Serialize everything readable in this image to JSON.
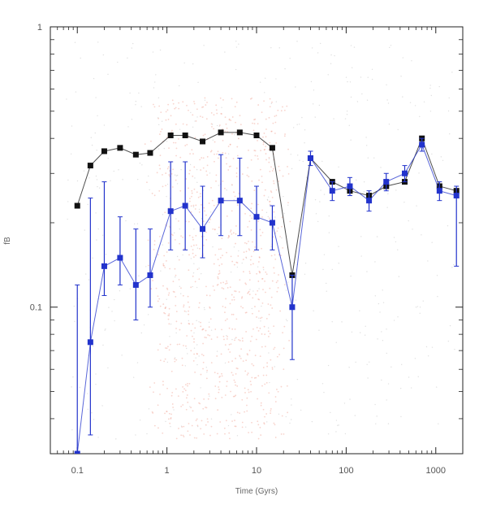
{
  "chart_data": {
    "type": "scatter",
    "title": "",
    "xlabel": "Time (Gyrs)",
    "ylabel": "fB",
    "xscale": "log",
    "yscale": "log",
    "xlim": [
      0.05,
      2000
    ],
    "ylim": [
      0.03,
      1
    ],
    "grid": false,
    "legend": "none",
    "x_ticks": [
      {
        "value": 0.1,
        "label": "0.1"
      },
      {
        "value": 1,
        "label": "1"
      },
      {
        "value": 10,
        "label": "10"
      },
      {
        "value": 100,
        "label": "100"
      },
      {
        "value": 1000,
        "label": "1000"
      }
    ],
    "y_ticks": [
      {
        "value": 1,
        "label": "1"
      },
      {
        "value": 0.1,
        "label": "0.1"
      }
    ],
    "series": [
      {
        "name": "",
        "color": "#111111",
        "x": [
          0.1,
          0.14,
          0.2,
          0.3,
          0.45,
          0.65,
          1.1,
          1.6,
          2.5,
          4,
          6.5,
          10,
          15,
          25,
          40,
          70,
          110,
          180,
          280,
          450,
          700,
          1100,
          1700
        ],
        "y": [
          0.23,
          0.32,
          0.36,
          0.37,
          0.35,
          0.355,
          0.41,
          0.41,
          0.39,
          0.42,
          0.42,
          0.41,
          0.37,
          0.13,
          0.34,
          0.28,
          0.26,
          0.25,
          0.27,
          0.28,
          0.4,
          0.27,
          0.26
        ]
      },
      {
        "name": "",
        "color": "#2233cc",
        "x": [
          0.1,
          0.14,
          0.2,
          0.3,
          0.45,
          0.65,
          1.1,
          1.6,
          2.5,
          4,
          6.5,
          10,
          15,
          25,
          40,
          70,
          110,
          180,
          280,
          450,
          700,
          1100,
          1700
        ],
        "y": [
          0.03,
          0.075,
          0.14,
          0.15,
          0.12,
          0.13,
          0.22,
          0.23,
          0.19,
          0.24,
          0.24,
          0.21,
          0.2,
          0.1,
          0.34,
          0.26,
          0.27,
          0.24,
          0.28,
          0.3,
          0.38,
          0.26,
          0.25
        ],
        "yerr_low": [
          0.0,
          0.04,
          0.03,
          0.03,
          0.03,
          0.03,
          0.06,
          0.07,
          0.04,
          0.06,
          0.06,
          0.05,
          0.04,
          0.035,
          0.02,
          0.02,
          0.02,
          0.02,
          0.02,
          0.02,
          0.02,
          0.02,
          0.11
        ],
        "yerr_high": [
          0.09,
          0.17,
          0.14,
          0.06,
          0.07,
          0.06,
          0.11,
          0.1,
          0.08,
          0.11,
          0.1,
          0.06,
          0.03,
          0.03,
          0.02,
          0.02,
          0.02,
          0.02,
          0.02,
          0.02,
          0.02,
          0.02,
          0.02
        ]
      }
    ]
  }
}
